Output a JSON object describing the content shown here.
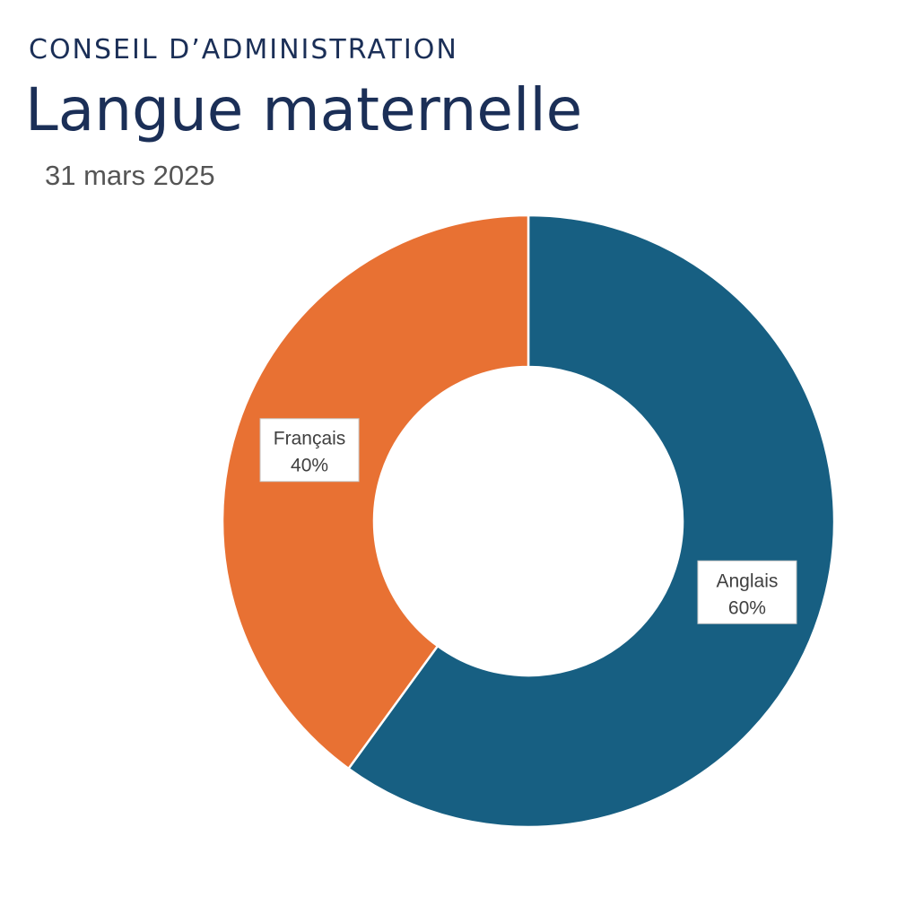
{
  "header": {
    "eyebrow": "CONSEIL D’ADMINISTRATION",
    "title": "Langue maternelle",
    "date": "31 mars 2025"
  },
  "chart_data": {
    "type": "pie",
    "variant": "donut",
    "categories": [
      "Anglais",
      "Français"
    ],
    "values": [
      60,
      40
    ],
    "value_labels": [
      "60%",
      "40%"
    ],
    "colors": [
      "#175f82",
      "#e87133"
    ],
    "title": "Langue maternelle",
    "subtitle": "31 mars 2025",
    "legend": "none"
  }
}
